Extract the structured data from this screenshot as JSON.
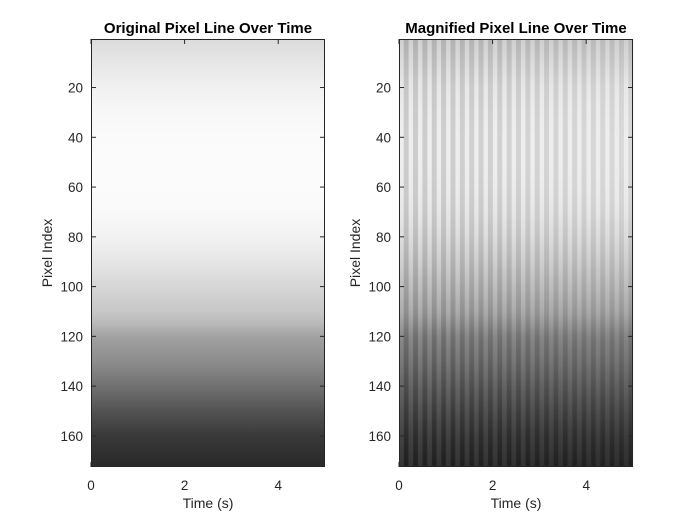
{
  "chart_data": [
    {
      "type": "heatmap",
      "colormap": "gray",
      "title": "Original Pixel Line Over Time",
      "xlabel": "Time (s)",
      "ylabel": "Pixel Index",
      "xlim": [
        0,
        5
      ],
      "ylim": [
        1,
        172
      ],
      "y_reversed": true,
      "xticks": [
        0,
        2,
        4
      ],
      "xtick_labels": [
        "0",
        "2",
        "4"
      ],
      "yticks": [
        20,
        40,
        60,
        80,
        100,
        120,
        140,
        160
      ],
      "ytick_labels": [
        "20",
        "40",
        "60",
        "80",
        "100",
        "120",
        "140",
        "160"
      ],
      "intensity_profile": {
        "pixel_index": [
          1,
          10,
          20,
          30,
          40,
          50,
          60,
          70,
          80,
          90,
          100,
          110,
          115,
          120,
          130,
          140,
          150,
          160,
          172
        ],
        "intensity": [
          0.86,
          0.9,
          0.94,
          0.97,
          0.98,
          0.985,
          0.985,
          0.975,
          0.95,
          0.9,
          0.84,
          0.78,
          0.72,
          0.63,
          0.55,
          0.44,
          0.32,
          0.22,
          0.16
        ]
      },
      "temporal_stripes": false
    },
    {
      "type": "heatmap",
      "colormap": "gray",
      "title": "Magnified Pixel Line Over Time",
      "xlabel": "Time (s)",
      "ylabel": "Pixel Index",
      "xlim": [
        0,
        5
      ],
      "ylim": [
        1,
        172
      ],
      "y_reversed": true,
      "xticks": [
        0,
        2,
        4
      ],
      "xtick_labels": [
        "0",
        "2",
        "4"
      ],
      "yticks": [
        20,
        40,
        60,
        80,
        100,
        120,
        140,
        160
      ],
      "ytick_labels": [
        "20",
        "40",
        "60",
        "80",
        "100",
        "120",
        "140",
        "160"
      ],
      "intensity_profile": {
        "pixel_index": [
          1,
          10,
          20,
          30,
          40,
          50,
          60,
          70,
          80,
          90,
          100,
          110,
          115,
          120,
          130,
          140,
          150,
          160,
          172
        ],
        "intensity": [
          0.8,
          0.85,
          0.9,
          0.92,
          0.93,
          0.93,
          0.92,
          0.9,
          0.86,
          0.8,
          0.73,
          0.65,
          0.58,
          0.5,
          0.43,
          0.35,
          0.27,
          0.2,
          0.14
        ]
      },
      "temporal_stripes": true,
      "stripe_count": 50,
      "stripe_amplitude": 0.14
    }
  ]
}
